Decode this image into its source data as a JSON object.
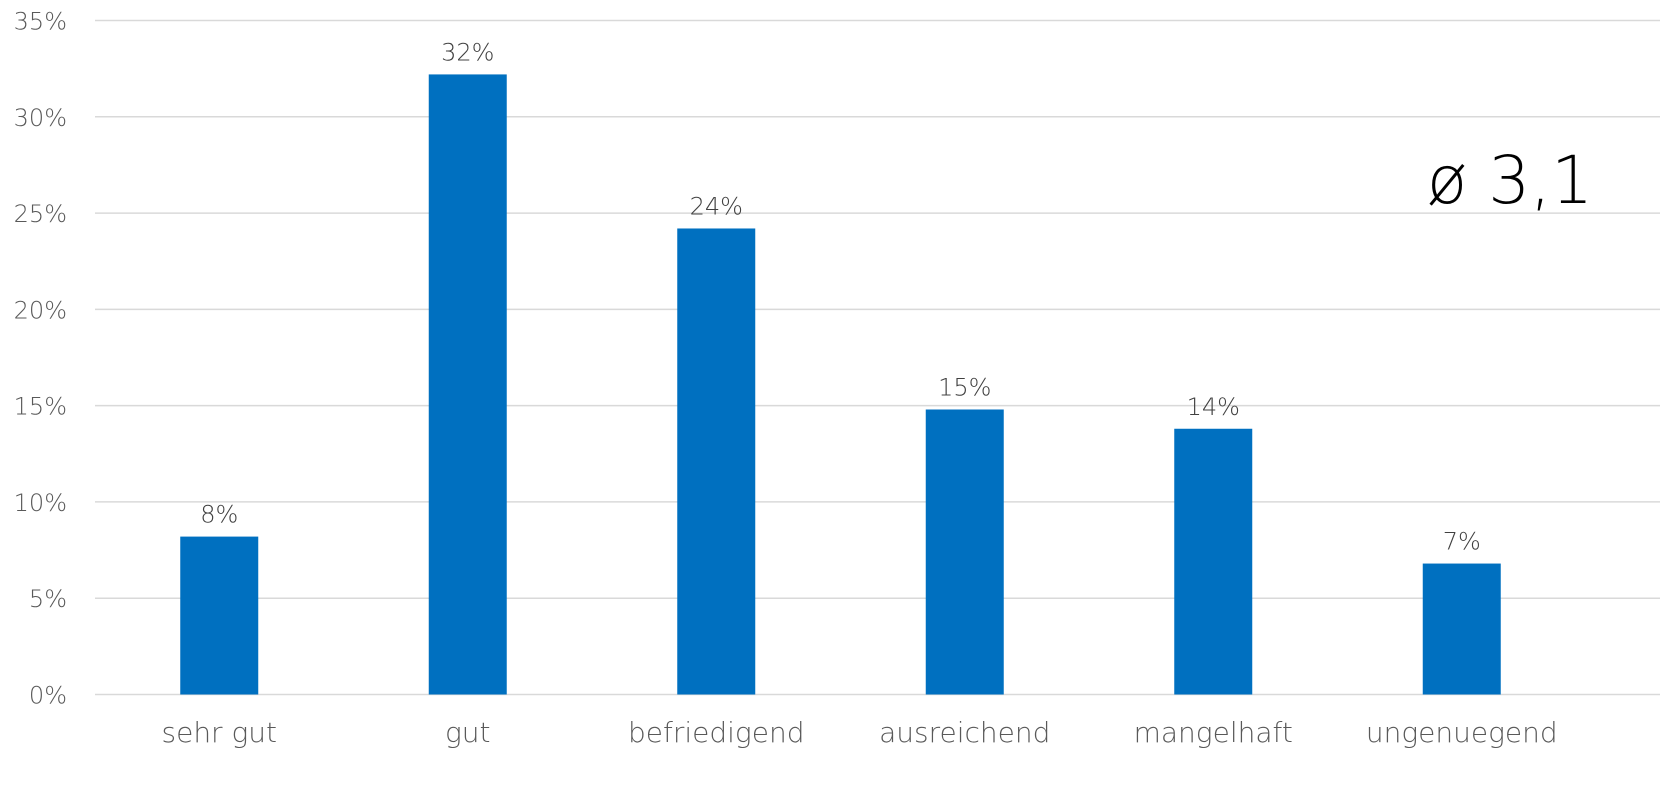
{
  "chart_data": {
    "type": "bar",
    "categories": [
      "sehr gut",
      "gut",
      "befriedigend",
      "ausreichend",
      "mangelhaft",
      "ungenuegend"
    ],
    "values": [
      8.2,
      32.2,
      24.2,
      14.8,
      13.8,
      6.8
    ],
    "data_labels": [
      "8%",
      "32%",
      "24%",
      "15%",
      "14%",
      "7%"
    ],
    "y_ticks": [
      0,
      5,
      10,
      15,
      20,
      25,
      30,
      35
    ],
    "y_tick_labels": [
      "0%",
      "5%",
      "10%",
      "15%",
      "20%",
      "25%",
      "30%",
      "35%"
    ],
    "ylim": [
      0,
      35
    ],
    "grid": true,
    "bar_color": "#0070C0",
    "gridline_color": "#D9D9D9",
    "annotation": "ø 3,1",
    "title": "",
    "xlabel": "",
    "ylabel": ""
  }
}
